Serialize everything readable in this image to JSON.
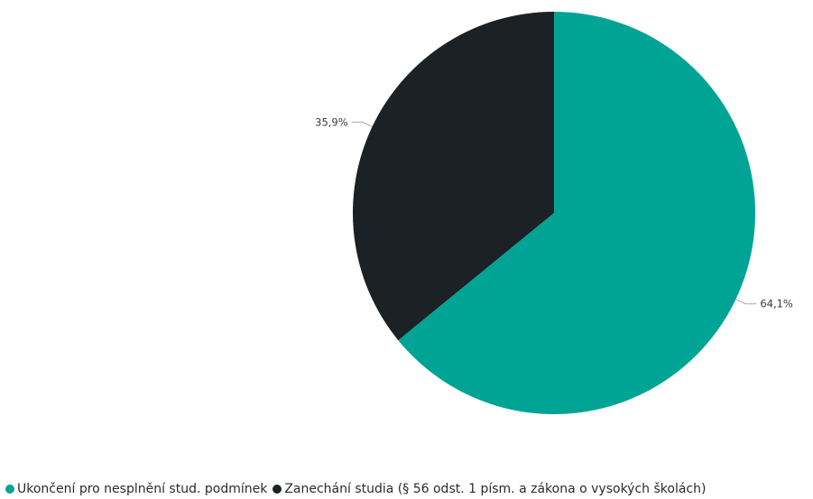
{
  "chart_data": {
    "type": "pie",
    "categories": [
      "Ukončení pro nesplnění stud. podmínek",
      "Zanechání studia (§ 56 odst. 1 písm. a zákona o vysokých školách)"
    ],
    "values": [
      64.1,
      35.9
    ],
    "data_labels": [
      "64,1%",
      "35,9%"
    ],
    "colors": [
      "#00A494",
      "#1B2124"
    ],
    "legend_placement": "bottom-left",
    "start_angle_deg": 0,
    "direction": "clockwise"
  },
  "legend": {
    "items": [
      {
        "label": "Ukončení pro nesplnění stud. podmínek",
        "color": "#00A494"
      },
      {
        "label": "Zanechání studia (§ 56 odst. 1 písm. a zákona o vysokých školách)",
        "color": "#1B2124"
      }
    ]
  }
}
